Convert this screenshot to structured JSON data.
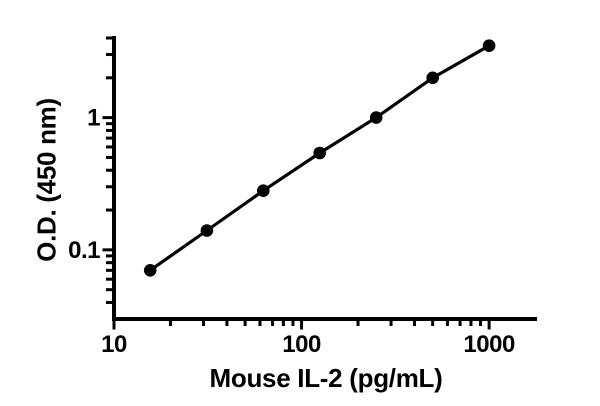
{
  "figure": {
    "background_color": "#ffffff",
    "foreground_color": "#000000"
  },
  "chart_data": {
    "type": "line",
    "title": "",
    "xlabel": "Mouse IL-2 (pg/mL)",
    "ylabel": "O.D. (450 nm)",
    "x_scale": "log",
    "y_scale": "log",
    "x": [
      15.6,
      31.3,
      62.5,
      125,
      250,
      500,
      1000
    ],
    "values": [
      0.07,
      0.14,
      0.28,
      0.54,
      1.0,
      2.0,
      3.5
    ],
    "x_axis": {
      "min": 10,
      "max": 1800,
      "major_ticks": [
        10,
        100,
        1000
      ],
      "tick_labels": [
        "10",
        "100",
        "1000"
      ]
    },
    "y_axis": {
      "min": 0.03,
      "max": 4,
      "major_ticks": [
        1,
        0.1
      ],
      "tick_labels": [
        "1",
        "0.1"
      ]
    },
    "grid": false,
    "legend": false,
    "marker": "filled-circle",
    "line_color": "#000000",
    "marker_color": "#000000"
  }
}
